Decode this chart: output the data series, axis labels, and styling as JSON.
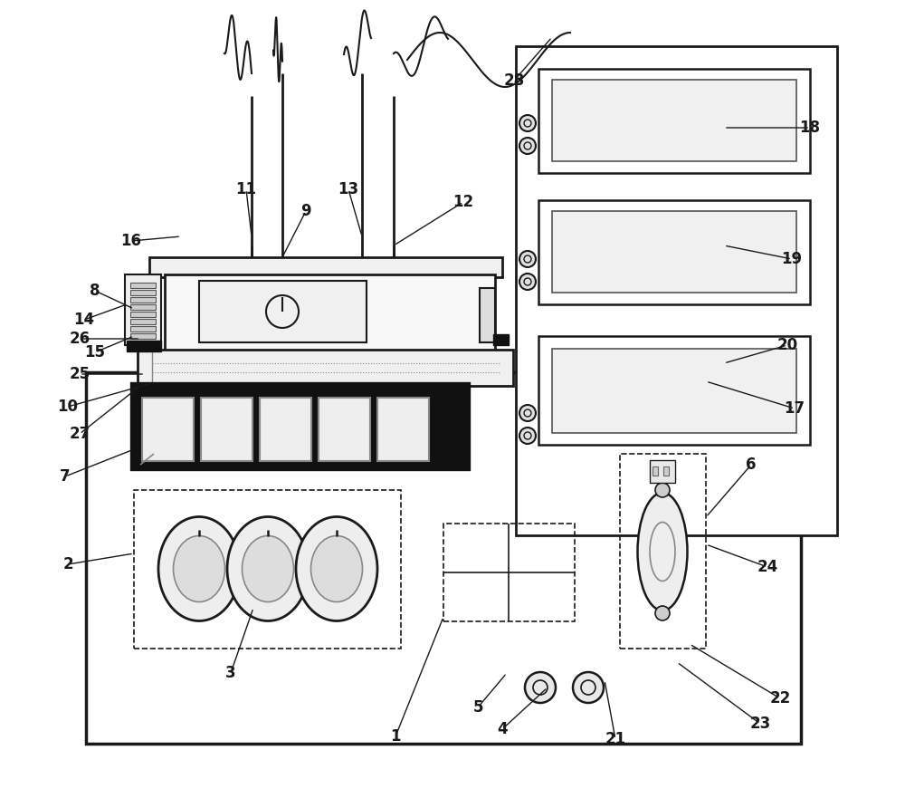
{
  "bg_color": "#ffffff",
  "lc": "#1a1a1a",
  "fig_w": 10.0,
  "fig_h": 8.81,
  "dpi": 100
}
